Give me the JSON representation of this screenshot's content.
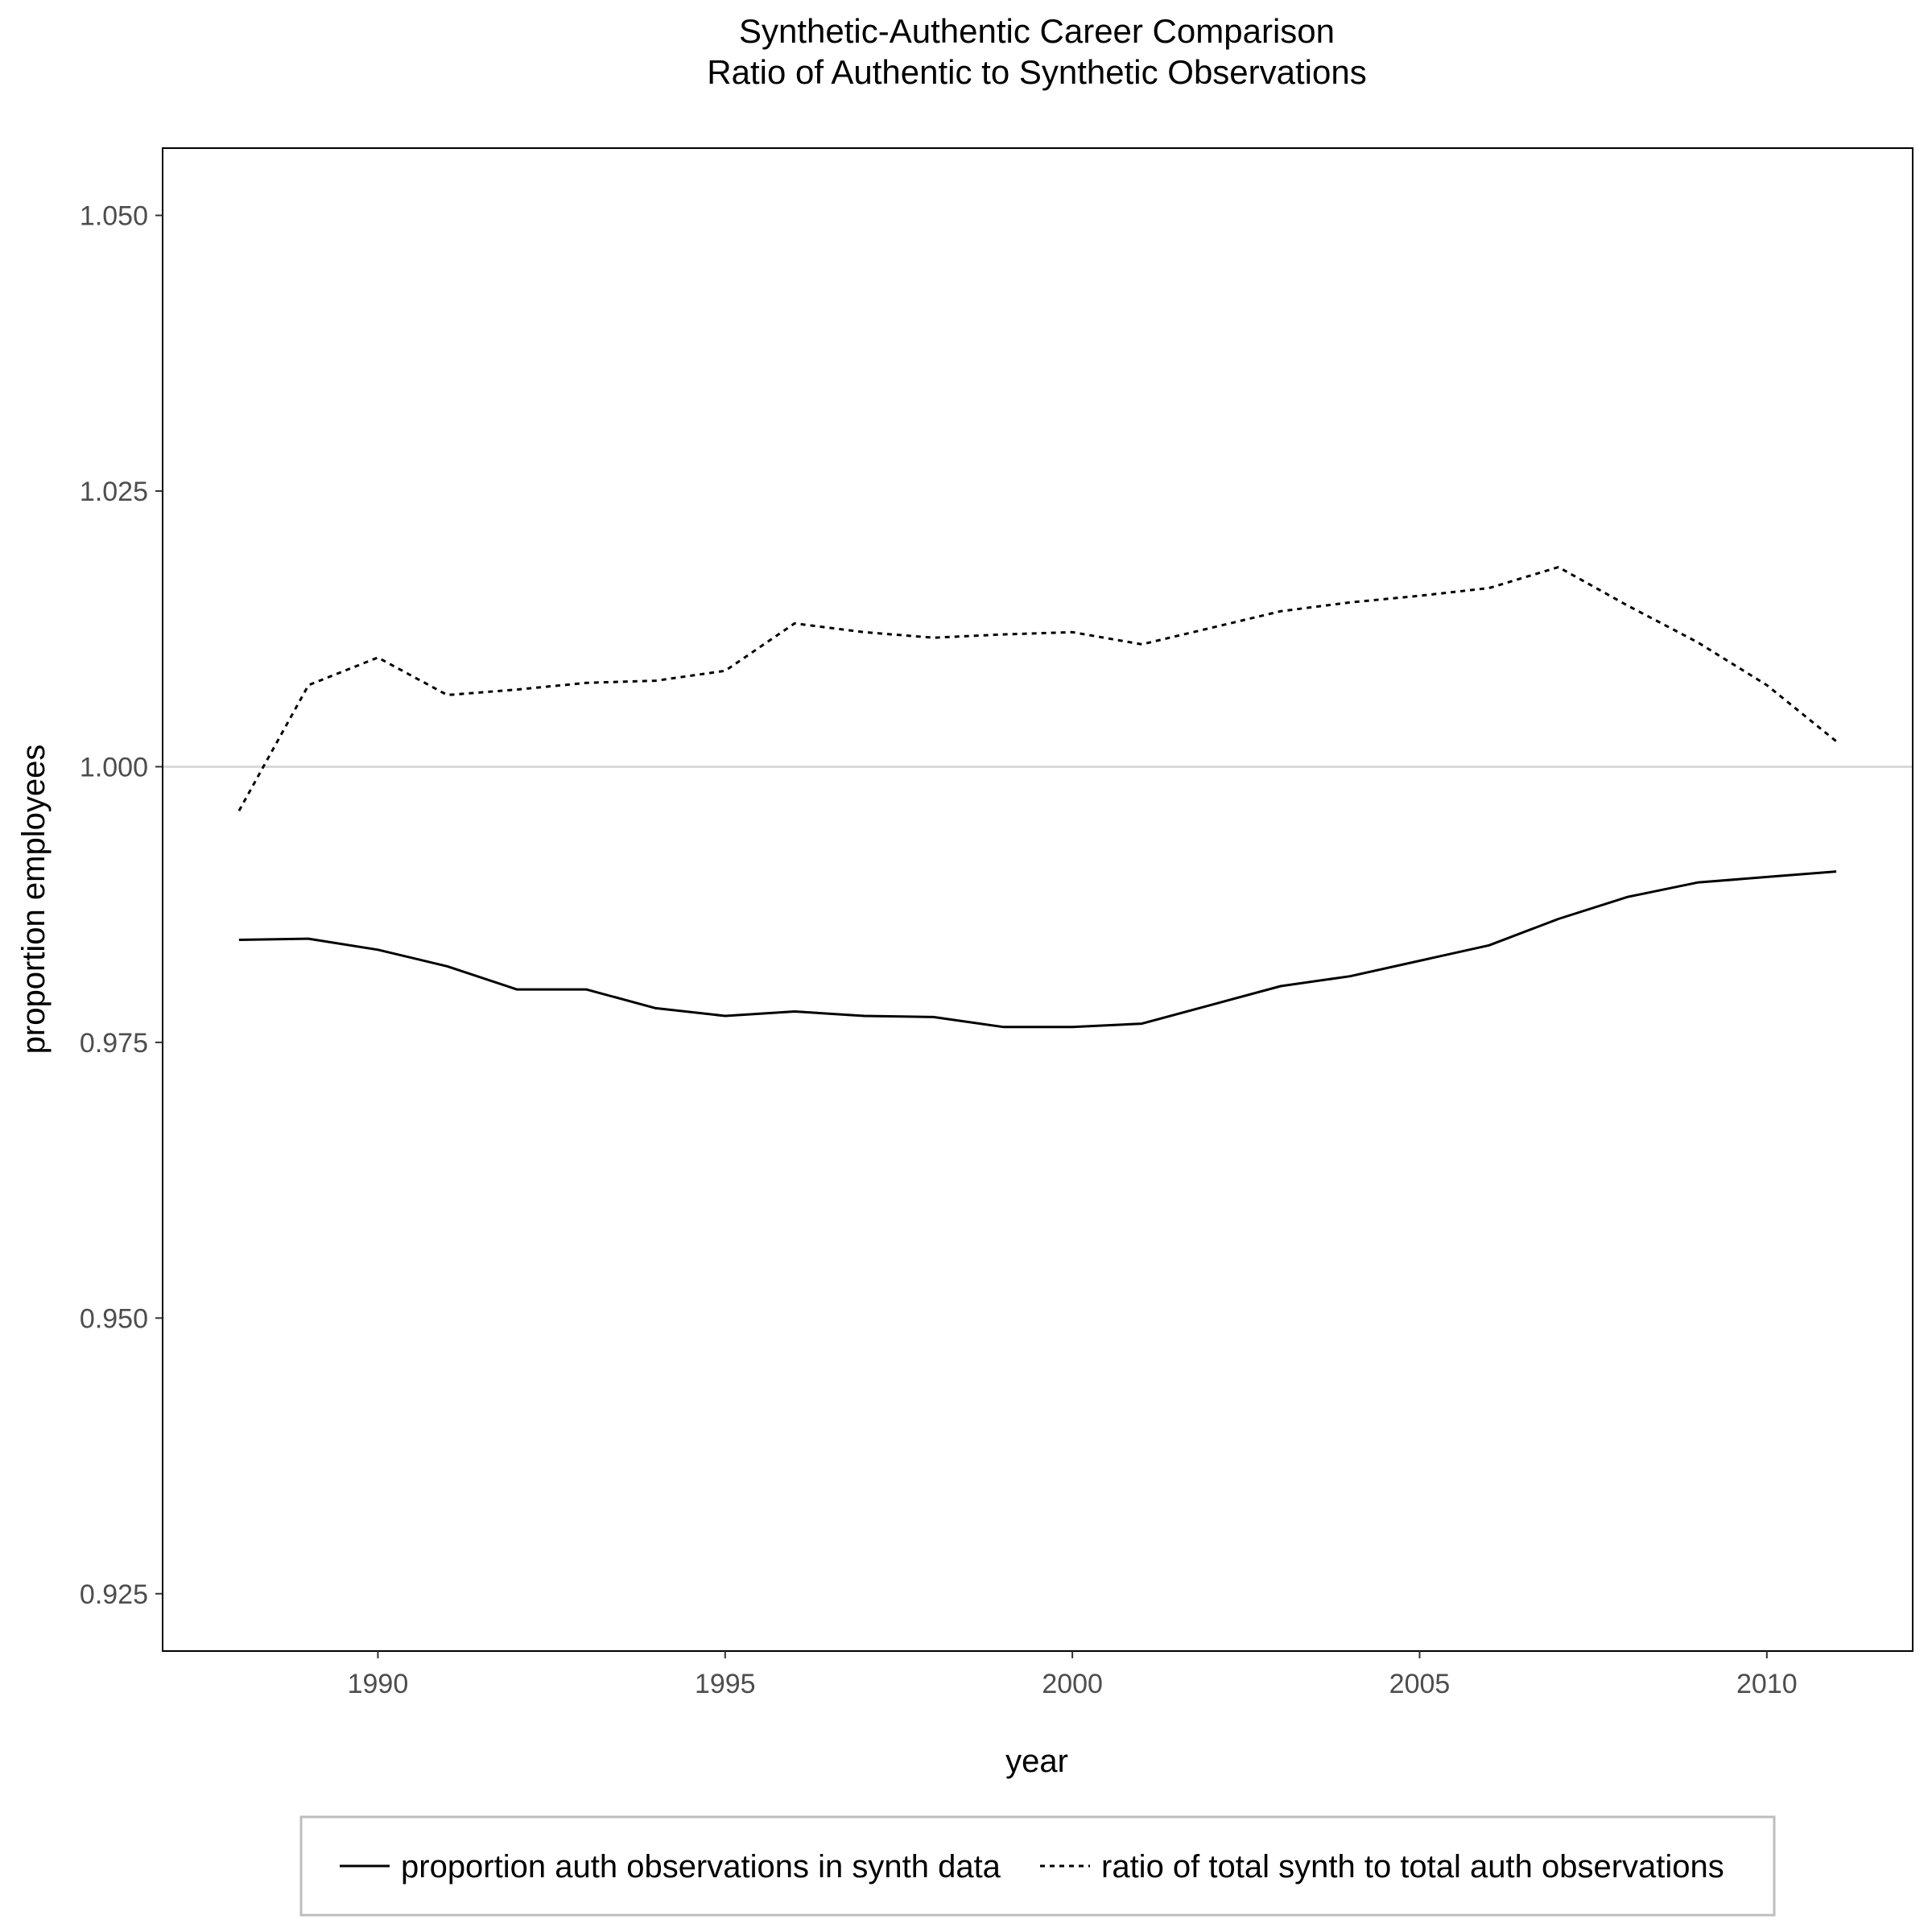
{
  "chart_data": {
    "type": "line",
    "title": "Synthetic-Authentic Career Comparison",
    "subtitle": "Ratio of Authentic to Synthetic Observations",
    "xlabel": "year",
    "ylabel": "proportion employees",
    "xlim": [
      1986.9,
      2012.1
    ],
    "ylim": [
      0.9198,
      1.0561
    ],
    "x_ticks": [
      1990,
      1995,
      2000,
      2005,
      2010
    ],
    "y_ticks": [
      0.925,
      0.95,
      0.975,
      1.0,
      1.025,
      1.05
    ],
    "y_tick_labels": [
      "0.925",
      "0.950",
      "0.975",
      "1.000",
      "1.025",
      "1.050"
    ],
    "reference_line": {
      "y": 1.0,
      "color": "#d9d9d9"
    },
    "grid": false,
    "legend_position": "bottom",
    "x": [
      1988,
      1989,
      1990,
      1991,
      1992,
      1993,
      1994,
      1995,
      1996,
      1997,
      1998,
      1999,
      2000,
      2001,
      2002,
      2003,
      2004,
      2005,
      2006,
      2007,
      2008,
      2009,
      2010,
      2011
    ],
    "series": [
      {
        "name": "proportion auth observations in synth data",
        "style": "solid",
        "color": "#000000",
        "values": [
          0.9843,
          0.9844,
          0.9834,
          0.9819,
          0.9798,
          0.9798,
          0.9781,
          0.9774,
          0.9778,
          0.9774,
          0.9773,
          0.9764,
          0.9764,
          0.9767,
          0.9784,
          0.9801,
          0.981,
          0.9824,
          0.9838,
          0.9862,
          0.9882,
          0.9895,
          0.99,
          0.9905
        ]
      },
      {
        "name": "ratio of total synth to total auth observations",
        "style": "dotted",
        "color": "#000000",
        "values": [
          0.996,
          1.0074,
          1.0099,
          1.0065,
          1.007,
          1.0076,
          1.0078,
          1.0087,
          1.013,
          1.0122,
          1.0117,
          1.012,
          1.0122,
          1.0111,
          1.0126,
          1.0141,
          1.0149,
          1.0155,
          1.0162,
          1.0181,
          1.0146,
          1.0113,
          1.0074,
          1.0023
        ]
      }
    ]
  }
}
